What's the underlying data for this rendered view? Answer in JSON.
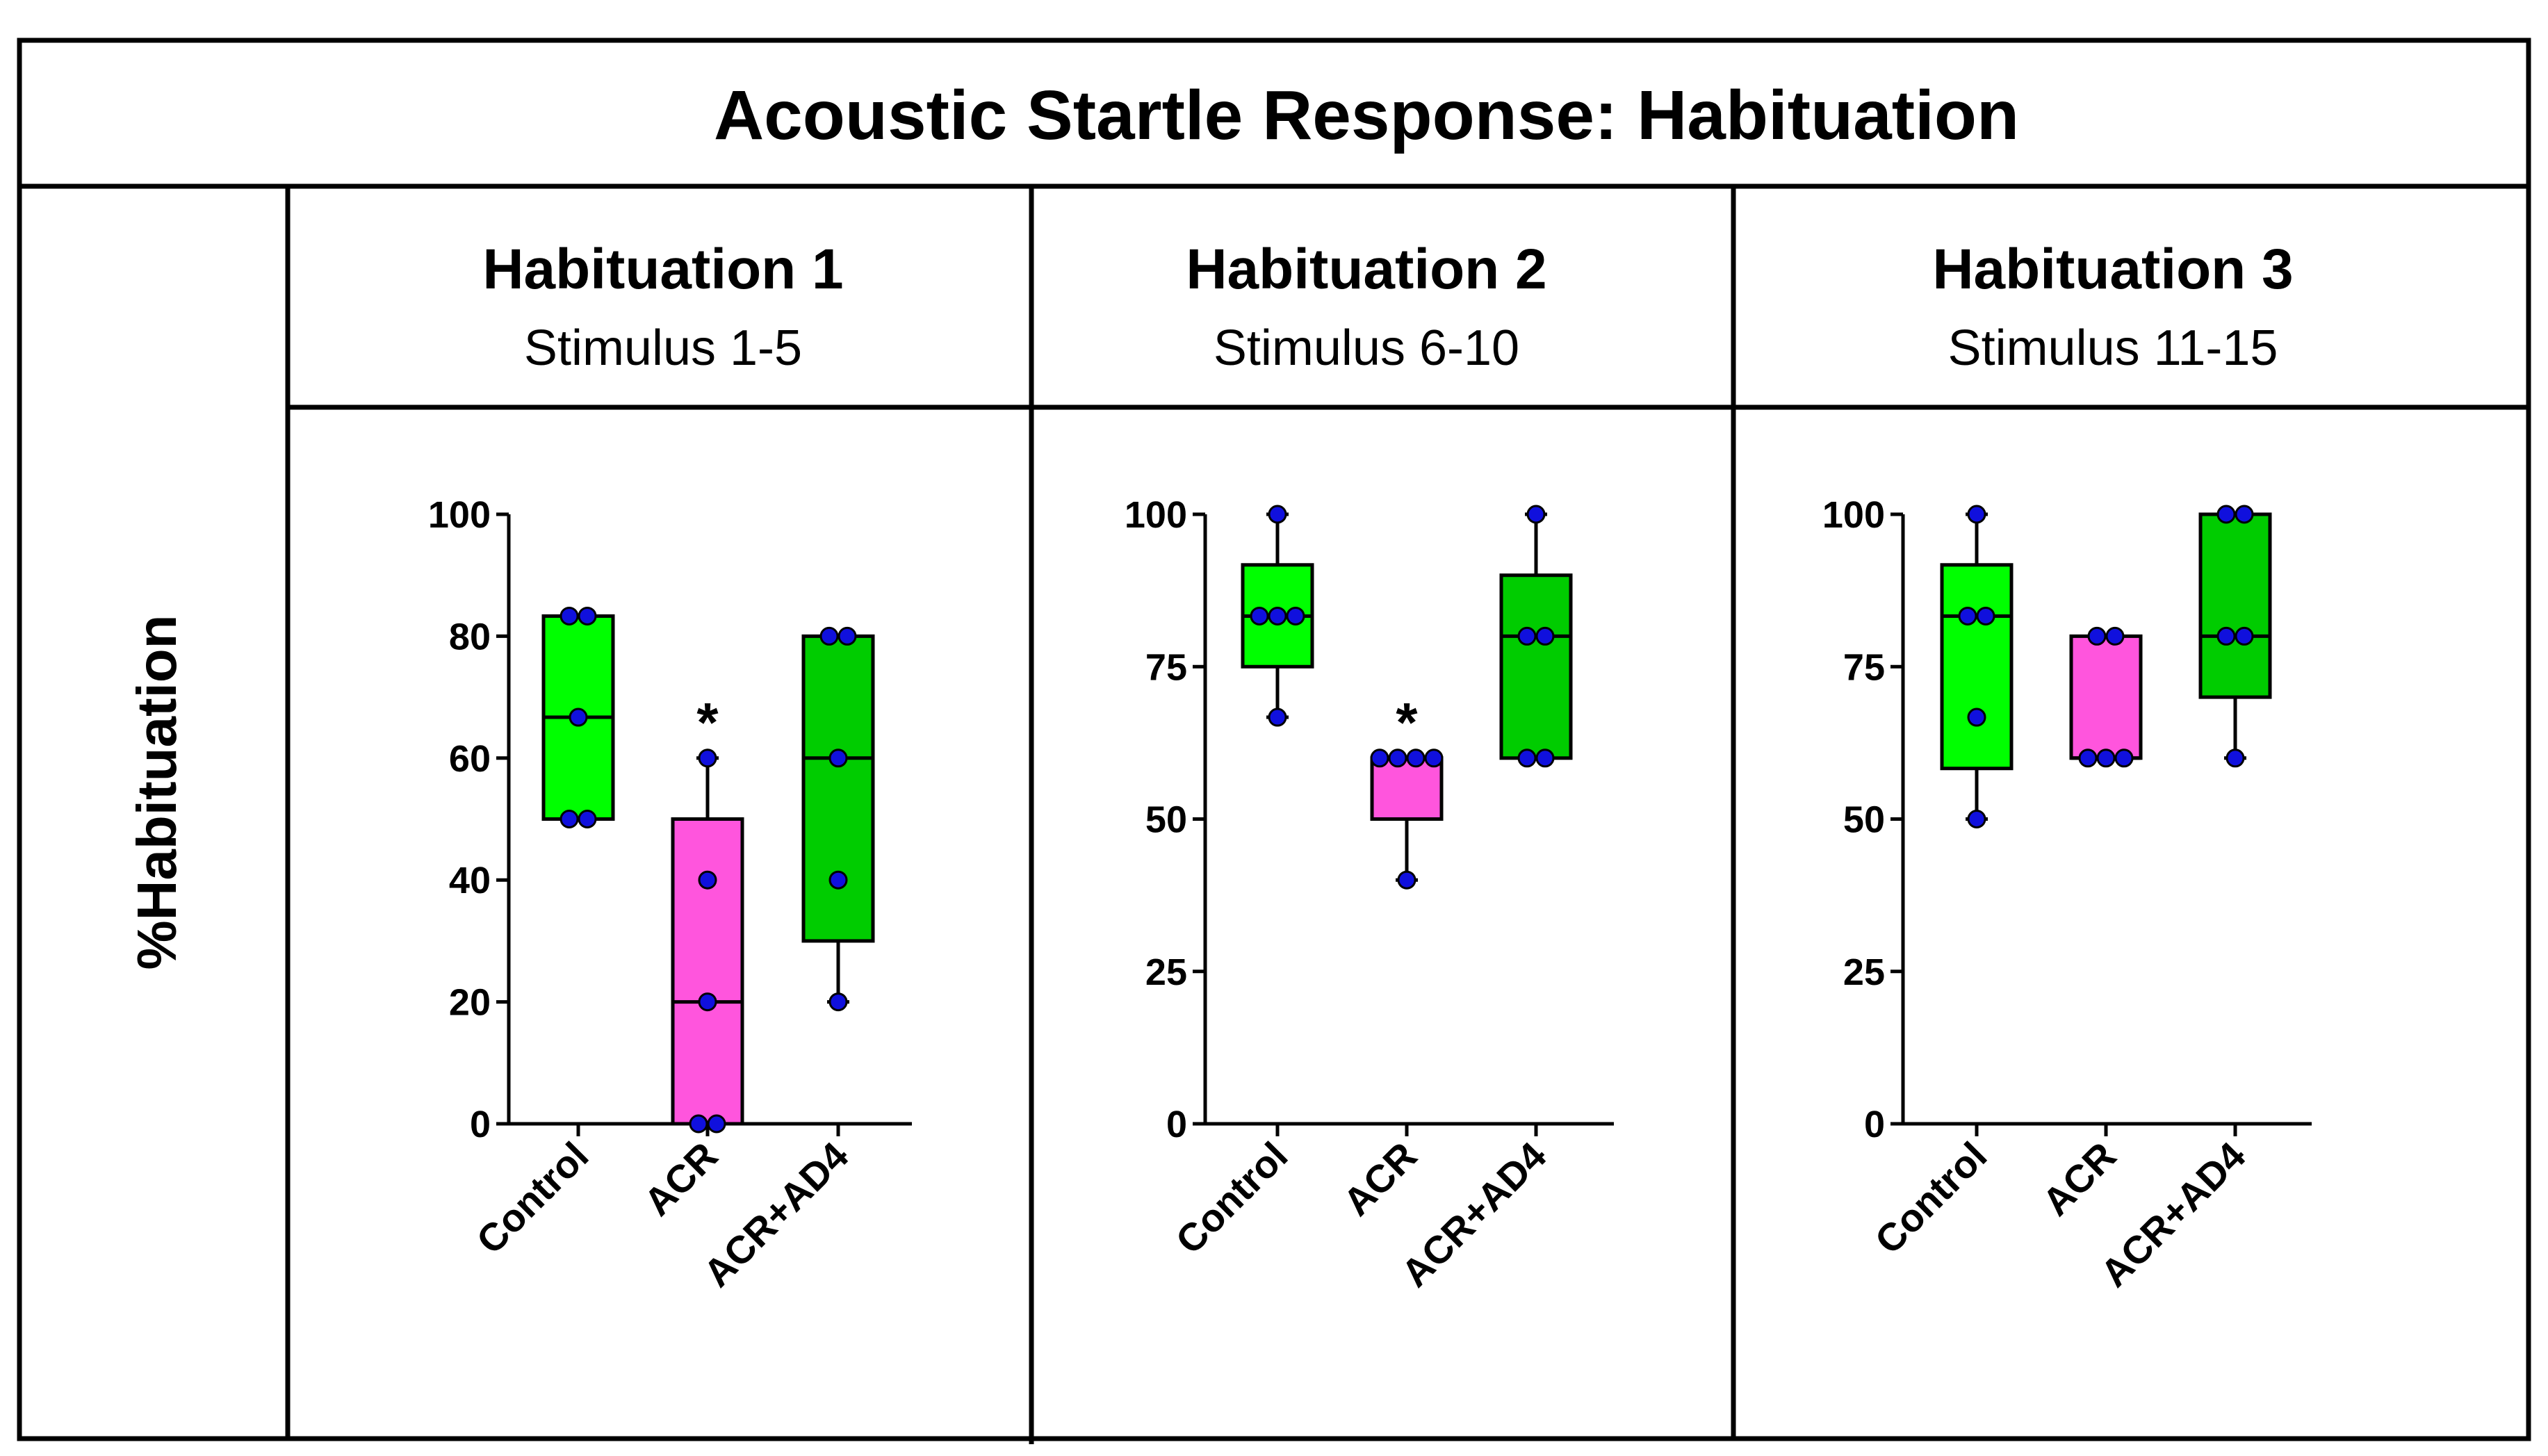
{
  "figure": {
    "title": "Acoustic Startle Response: Habituation",
    "ylabel": "%Habituation",
    "colors": {
      "control": "#00ff00",
      "acr": "#ff55dd",
      "acr_ad4": "#00cc00",
      "point": "#1010dd",
      "line": "#000000"
    }
  },
  "chart_data": [
    {
      "type": "box",
      "title": "Habituation 1",
      "subtitle": "Stimulus 1-5",
      "ylim": [
        0,
        100
      ],
      "yticks": [
        0,
        20,
        40,
        60,
        80,
        100
      ],
      "categories": [
        "Control",
        "ACR",
        "ACR+AD4"
      ],
      "boxes": [
        {
          "min": 50,
          "q1": 50,
          "median": 66.7,
          "q3": 83.3,
          "max": 83.3
        },
        {
          "min": 0,
          "q1": 0,
          "median": 20,
          "q3": 50,
          "max": 60
        },
        {
          "min": 20,
          "q1": 30,
          "median": 60,
          "q3": 80,
          "max": 80
        }
      ],
      "points": [
        [
          50,
          50,
          66.7,
          83.3,
          83.3
        ],
        [
          0,
          0,
          20,
          40,
          60
        ],
        [
          20,
          40,
          60,
          80,
          80
        ]
      ],
      "annotations": [
        {
          "text": "*",
          "category": "ACR"
        }
      ]
    },
    {
      "type": "box",
      "title": "Habituation 2",
      "subtitle": "Stimulus 6-10",
      "ylim": [
        0,
        100
      ],
      "yticks": [
        0,
        25,
        50,
        75,
        100
      ],
      "categories": [
        "Control",
        "ACR",
        "ACR+AD4"
      ],
      "boxes": [
        {
          "min": 66.7,
          "q1": 75,
          "median": 83.3,
          "q3": 91.7,
          "max": 100
        },
        {
          "min": 40,
          "q1": 50,
          "median": 60,
          "q3": 60,
          "max": 60
        },
        {
          "min": 60,
          "q1": 60,
          "median": 80,
          "q3": 90,
          "max": 100
        }
      ],
      "points": [
        [
          66.7,
          83.3,
          83.3,
          83.3,
          100
        ],
        [
          40,
          60,
          60,
          60,
          60
        ],
        [
          60,
          60,
          80,
          80,
          100
        ]
      ],
      "annotations": [
        {
          "text": "*",
          "category": "ACR"
        }
      ]
    },
    {
      "type": "box",
      "title": "Habituation 3",
      "subtitle": "Stimulus 11-15",
      "ylim": [
        0,
        100
      ],
      "yticks": [
        0,
        25,
        50,
        75,
        100
      ],
      "categories": [
        "Control",
        "ACR",
        "ACR+AD4"
      ],
      "boxes": [
        {
          "min": 50,
          "q1": 58.3,
          "median": 83.3,
          "q3": 91.7,
          "max": 100
        },
        {
          "min": 60,
          "q1": 60,
          "median": 60,
          "q3": 80,
          "max": 80
        },
        {
          "min": 60,
          "q1": 70,
          "median": 80,
          "q3": 100,
          "max": 100
        }
      ],
      "points": [
        [
          50,
          66.7,
          83.3,
          83.3,
          100
        ],
        [
          60,
          60,
          60,
          80,
          80
        ],
        [
          60,
          80,
          80,
          100,
          100
        ]
      ],
      "annotations": []
    }
  ]
}
